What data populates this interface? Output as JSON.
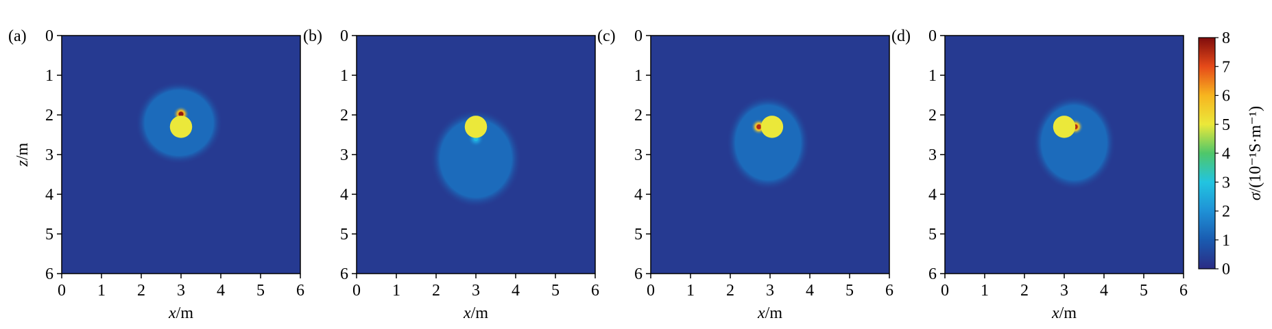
{
  "chart_data": {
    "type": "heatmap",
    "colorbar": {
      "label": "σ/(10⁻¹S·m⁻¹)",
      "min": 0,
      "max": 8,
      "ticks": [
        "0",
        "1",
        "2",
        "3",
        "4",
        "5",
        "6",
        "7",
        "8"
      ],
      "colormap": [
        "#2b2c84",
        "#1a5bb0",
        "#1f91d6",
        "#22c4e0",
        "#4fc76a",
        "#ebe83a",
        "#f7b51f",
        "#e64a19",
        "#7f0c0c"
      ]
    },
    "panels": [
      {
        "id": "a",
        "label": "(a)",
        "xlabel": "x/m",
        "ylabel": "z/m",
        "xticks": [
          "0",
          "1",
          "2",
          "3",
          "4",
          "5",
          "6"
        ],
        "yticks": [
          "0",
          "1",
          "2",
          "3",
          "4",
          "5",
          "6"
        ],
        "xlim": [
          0,
          6
        ],
        "zlim": [
          0,
          6
        ],
        "background": 0.3,
        "halo": {
          "cx": 2.95,
          "cz": 2.2,
          "rx": 1.1,
          "rz": 1.05,
          "value": 1.3
        },
        "body": {
          "cx": 3.0,
          "cz": 2.3,
          "r": 0.28,
          "value": 5.0
        },
        "spot": {
          "cx": 3.0,
          "cz": 1.98,
          "value": 7.8
        }
      },
      {
        "id": "b",
        "label": "(b)",
        "xlabel": "x/m",
        "ylabel": "",
        "xticks": [
          "0",
          "1",
          "2",
          "3",
          "4",
          "5",
          "6"
        ],
        "yticks": [
          "0",
          "1",
          "2",
          "3",
          "4",
          "5",
          "6"
        ],
        "xlim": [
          0,
          6
        ],
        "zlim": [
          0,
          6
        ],
        "background": 0.3,
        "halo": {
          "cx": 3.0,
          "cz": 3.1,
          "rx": 1.15,
          "rz": 1.25,
          "value": 1.3
        },
        "body": {
          "cx": 3.0,
          "cz": 2.3,
          "r": 0.28,
          "value": 5.0
        },
        "spot": {
          "cx": 3.0,
          "cz": 2.6,
          "value": 2.8
        }
      },
      {
        "id": "c",
        "label": "(c)",
        "xlabel": "x/m",
        "ylabel": "",
        "xticks": [
          "0",
          "1",
          "2",
          "3",
          "4",
          "5",
          "6"
        ],
        "yticks": [
          "0",
          "1",
          "2",
          "3",
          "4",
          "5",
          "6"
        ],
        "xlim": [
          0,
          6
        ],
        "zlim": [
          0,
          6
        ],
        "background": 0.3,
        "halo": {
          "cx": 2.95,
          "cz": 2.7,
          "rx": 1.05,
          "rz": 1.2,
          "value": 1.3
        },
        "body": {
          "cx": 3.05,
          "cz": 2.3,
          "r": 0.28,
          "value": 5.0
        },
        "spot": {
          "cx": 2.72,
          "cz": 2.3,
          "value": 7.5
        }
      },
      {
        "id": "d",
        "label": "(d)",
        "xlabel": "x/m",
        "ylabel": "",
        "xticks": [
          "0",
          "1",
          "2",
          "3",
          "4",
          "5",
          "6"
        ],
        "yticks": [
          "0",
          "1",
          "2",
          "3",
          "4",
          "5",
          "6"
        ],
        "xlim": [
          0,
          6
        ],
        "zlim": [
          0,
          6
        ],
        "background": 0.3,
        "halo": {
          "cx": 3.25,
          "cz": 2.7,
          "rx": 1.05,
          "rz": 1.2,
          "value": 1.3
        },
        "body": {
          "cx": 3.0,
          "cz": 2.3,
          "r": 0.28,
          "value": 5.0
        },
        "spot": {
          "cx": 3.28,
          "cz": 2.3,
          "value": 7.5
        }
      }
    ]
  }
}
